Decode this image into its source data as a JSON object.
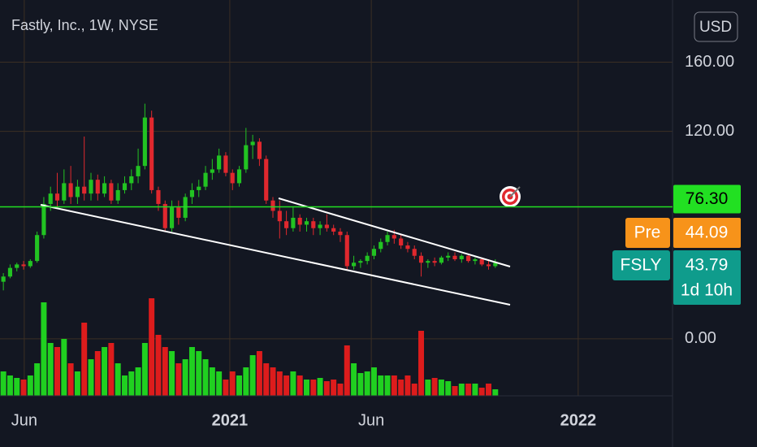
{
  "chart_data": {
    "type": "candlestick",
    "title": "Fastly, Inc., 1W, NYSE",
    "currency": "USD",
    "up_color": "#22c322",
    "down_color": "#e0282e",
    "volume_up_color": "#20d020",
    "volume_down_color": "#dd1c1c",
    "ylim": [
      -33,
      196
    ],
    "yticks": [
      {
        "value": 160,
        "label": "160.00"
      },
      {
        "value": 120,
        "label": "120.00"
      },
      {
        "value": 0,
        "label": "0.00"
      }
    ],
    "xlim": [
      -0.5,
      99.3
    ],
    "xticks": [
      {
        "value": 3.1,
        "label": "Jun"
      },
      {
        "value": 33.6,
        "label": "2021"
      },
      {
        "value": 54.6,
        "label": "Jun"
      },
      {
        "value": 85.3,
        "label": "2022"
      }
    ],
    "grid": true,
    "vlim": [
      0,
      150
    ],
    "open": [
      33,
      36,
      41,
      43,
      42,
      45,
      60,
      78,
      84,
      80,
      90,
      82,
      88,
      84,
      92,
      84,
      90,
      80,
      86,
      90,
      94,
      100,
      128,
      86,
      78,
      64,
      76,
      70,
      82,
      86,
      88,
      96,
      98,
      106,
      96,
      90,
      98,
      112,
      114,
      104,
      80,
      74,
      68,
      64,
      70,
      66,
      68,
      64,
      66,
      64,
      62,
      60,
      42,
      44,
      45,
      48,
      52,
      56,
      60,
      58,
      54,
      52,
      48,
      44,
      45,
      44,
      47,
      48,
      46,
      48,
      45,
      46,
      43,
      42
    ],
    "high": [
      38,
      43,
      44,
      45,
      46,
      62,
      82,
      88,
      96,
      98,
      100,
      92,
      117,
      96,
      95,
      94,
      92,
      90,
      94,
      98,
      110,
      136,
      132,
      88,
      80,
      80,
      80,
      84,
      90,
      92,
      100,
      104,
      110,
      108,
      98,
      100,
      122,
      118,
      116,
      106,
      82,
      80,
      74,
      76,
      72,
      70,
      70,
      68,
      72,
      66,
      64,
      62,
      48,
      46,
      50,
      54,
      58,
      62,
      63,
      60,
      56,
      54,
      50,
      46,
      47,
      48,
      50,
      50,
      49,
      49,
      47,
      47,
      46,
      46
    ],
    "low": [
      28,
      35,
      39,
      40,
      41,
      44,
      58,
      74,
      76,
      78,
      78,
      78,
      80,
      80,
      80,
      82,
      78,
      78,
      84,
      86,
      90,
      98,
      84,
      74,
      62,
      62,
      66,
      68,
      78,
      82,
      86,
      92,
      96,
      94,
      86,
      88,
      96,
      104,
      100,
      78,
      70,
      58,
      60,
      62,
      62,
      62,
      60,
      60,
      62,
      60,
      56,
      40,
      40,
      41,
      43,
      46,
      50,
      54,
      55,
      52,
      50,
      46,
      36,
      41,
      42,
      43,
      45,
      45,
      44,
      44,
      43,
      42,
      40,
      41
    ],
    "close": [
      36,
      41,
      43,
      42,
      45,
      60,
      78,
      84,
      80,
      90,
      82,
      88,
      84,
      92,
      84,
      90,
      80,
      86,
      90,
      94,
      100,
      128,
      86,
      78,
      64,
      76,
      70,
      82,
      86,
      88,
      96,
      98,
      106,
      96,
      90,
      98,
      112,
      114,
      104,
      80,
      74,
      68,
      64,
      70,
      66,
      68,
      64,
      66,
      64,
      62,
      60,
      42,
      44,
      45,
      48,
      52,
      56,
      60,
      58,
      54,
      52,
      48,
      44,
      45,
      44,
      47,
      48,
      46,
      48,
      45,
      46,
      43,
      42,
      44
    ],
    "volume": [
      30,
      25,
      22,
      20,
      25,
      40,
      115,
      65,
      60,
      70,
      40,
      30,
      90,
      45,
      55,
      60,
      65,
      40,
      25,
      30,
      35,
      65,
      120,
      75,
      60,
      55,
      40,
      45,
      60,
      55,
      45,
      35,
      30,
      20,
      30,
      25,
      35,
      50,
      55,
      40,
      35,
      30,
      25,
      30,
      25,
      20,
      20,
      22,
      18,
      20,
      15,
      62,
      40,
      28,
      30,
      35,
      25,
      25,
      25,
      20,
      25,
      15,
      80,
      20,
      22,
      20,
      18,
      12,
      15,
      15,
      15,
      10,
      15,
      8
    ],
    "horizontal_line": {
      "value": 76.3,
      "label": "76.30",
      "color": "#22e022"
    },
    "badges": [
      {
        "name": "Pre",
        "text": "44.09",
        "color": "#f7931a"
      },
      {
        "name": "FSLY",
        "text": "43.79",
        "countdown": "1d 10h",
        "color": "#0f9c8c"
      }
    ]
  }
}
